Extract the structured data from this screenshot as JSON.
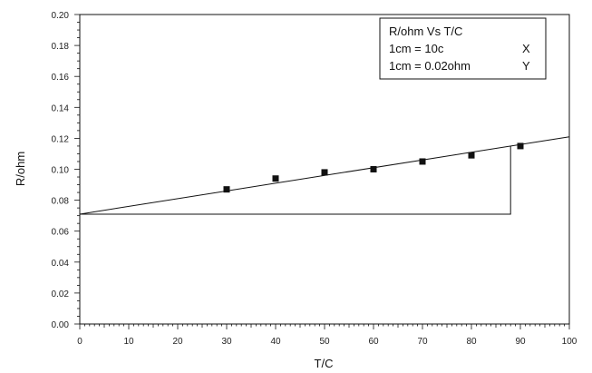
{
  "chart_data": {
    "type": "scatter",
    "xlabel": "T/C",
    "ylabel": "R/ohm",
    "xlim": [
      0,
      100
    ],
    "ylim": [
      0.0,
      0.2
    ],
    "x_ticks": [
      "0",
      "10",
      "20",
      "30",
      "40",
      "50",
      "60",
      "70",
      "80",
      "90",
      "100"
    ],
    "y_ticks": [
      "0.00",
      "0.02",
      "0.04",
      "0.06",
      "0.08",
      "0.10",
      "0.12",
      "0.14",
      "0.16",
      "0.18",
      "0.20"
    ],
    "points": [
      {
        "x": 30,
        "y": 0.087
      },
      {
        "x": 40,
        "y": 0.094
      },
      {
        "x": 50,
        "y": 0.098
      },
      {
        "x": 60,
        "y": 0.1
      },
      {
        "x": 70,
        "y": 0.105
      },
      {
        "x": 80,
        "y": 0.109
      },
      {
        "x": 90,
        "y": 0.115
      }
    ],
    "fit_line": {
      "x": [
        0,
        100
      ],
      "y": [
        0.071,
        0.121
      ]
    },
    "slope_triangle": {
      "x_start": 0,
      "x_end": 88,
      "y_base": 0.071,
      "y_top": 0.115
    },
    "legend": {
      "title": "R/ohm Vs T/C",
      "rows": [
        {
          "text": "1cm = 10c",
          "axis": "X"
        },
        {
          "text": "1cm = 0.02ohm",
          "axis": "Y"
        }
      ],
      "placement": "top-right"
    },
    "grid": false
  }
}
